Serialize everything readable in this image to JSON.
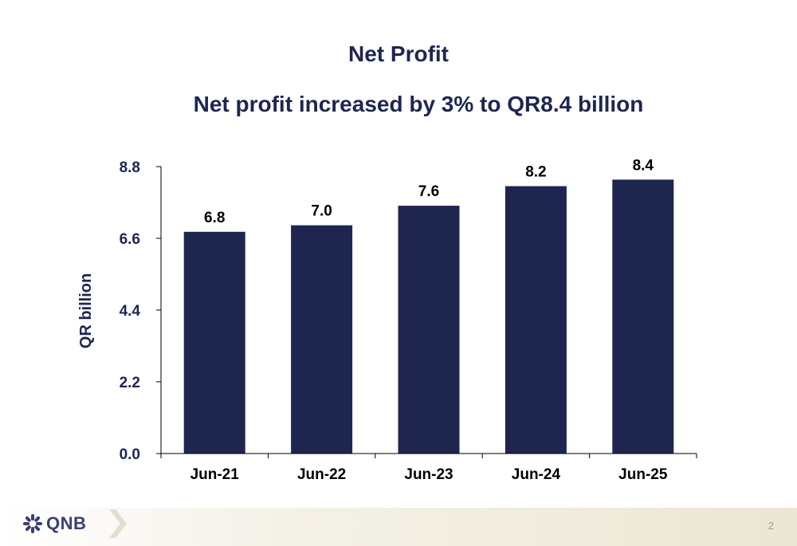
{
  "slide": {
    "title": "Net Profit",
    "subtitle": "Net profit increased by 3% to QR8.4 billion",
    "page_number": "2"
  },
  "footer": {
    "logo_text": "QNB",
    "logo_icon": "qnb-star-icon"
  },
  "colors": {
    "bar": "#1e2650",
    "text": "#1e2650",
    "axis": "#000000"
  },
  "chart_data": {
    "type": "bar",
    "title": "",
    "xlabel": "",
    "ylabel": "QR billion",
    "categories": [
      "Jun-21",
      "Jun-22",
      "Jun-23",
      "Jun-24",
      "Jun-25"
    ],
    "values": [
      6.8,
      7.0,
      7.6,
      8.2,
      8.4
    ],
    "data_labels": [
      "6.8",
      "7.0",
      "7.6",
      "8.2",
      "8.4"
    ],
    "yticks": [
      "0.0",
      "2.2",
      "4.4",
      "6.6",
      "8.8"
    ],
    "ylim": [
      0,
      8.8
    ],
    "grid": false,
    "legend": "none"
  }
}
